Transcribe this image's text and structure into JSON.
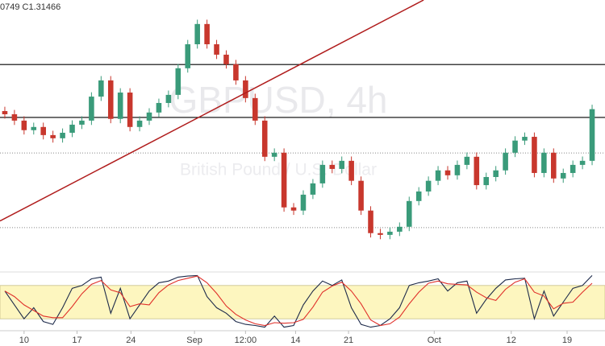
{
  "header": "0749  C1.31466",
  "chart_data": [
    {
      "type": "candlestick",
      "watermark": "GBPUSD, 4h",
      "watermark_subtitle": "British Pound / U.S. Dollar",
      "up_color": "#3a9b7a",
      "down_color": "#c8372d",
      "open": [
        1.314,
        1.3129,
        1.3107,
        1.3074,
        1.3085,
        1.3057,
        1.3046,
        1.3065,
        1.3093,
        1.3107,
        1.319,
        1.3246,
        1.3113,
        1.3204,
        1.3085,
        1.3107,
        1.3135,
        1.3168,
        1.3196,
        1.3288,
        1.3371,
        1.3441,
        1.3371,
        1.3335,
        1.3302,
        1.3246,
        1.3185,
        1.3107,
        1.2982,
        1.2996,
        1.2807,
        1.2796,
        1.2851,
        1.289,
        1.2954,
        1.294,
        1.2968,
        1.2899,
        1.2796,
        1.2718,
        1.2712,
        1.2723,
        1.274,
        1.2829,
        1.2862,
        1.2899,
        1.2935,
        1.2918,
        1.2954,
        1.2982,
        1.2884,
        1.2912,
        1.2935,
        1.2996,
        1.3038,
        1.3051,
        1.2926,
        1.2996,
        1.2907,
        1.2926,
        1.2954,
        1.2968
      ],
      "high": [
        1.3155,
        1.3144,
        1.3122,
        1.31,
        1.31,
        1.3072,
        1.308,
        1.3108,
        1.3122,
        1.3205,
        1.3261,
        1.3261,
        1.3219,
        1.3219,
        1.3122,
        1.315,
        1.3183,
        1.3211,
        1.3303,
        1.3386,
        1.3456,
        1.3456,
        1.3386,
        1.335,
        1.3317,
        1.3261,
        1.32,
        1.3122,
        1.3011,
        1.3011,
        1.2822,
        1.2866,
        1.2905,
        1.2969,
        1.2969,
        1.2983,
        1.2983,
        1.2914,
        1.2811,
        1.2733,
        1.2738,
        1.2755,
        1.2844,
        1.2877,
        1.2914,
        1.295,
        1.295,
        1.2969,
        1.2997,
        1.2997,
        1.2927,
        1.295,
        1.3011,
        1.3053,
        1.3066,
        1.3066,
        1.3011,
        1.3011,
        1.2941,
        1.2969,
        1.2983,
        1.3162
      ],
      "low": [
        1.3114,
        1.3092,
        1.3059,
        1.3059,
        1.3042,
        1.3031,
        1.3031,
        1.305,
        1.3078,
        1.3092,
        1.3175,
        1.3098,
        1.3098,
        1.307,
        1.307,
        1.3092,
        1.312,
        1.3153,
        1.3181,
        1.3273,
        1.3356,
        1.3356,
        1.332,
        1.3287,
        1.3231,
        1.317,
        1.3092,
        1.2967,
        1.2967,
        1.2792,
        1.2781,
        1.2781,
        1.2836,
        1.2875,
        1.2925,
        1.2925,
        1.2884,
        1.2781,
        1.2703,
        1.2697,
        1.2697,
        1.2708,
        1.2725,
        1.2814,
        1.2847,
        1.2884,
        1.2903,
        1.2903,
        1.2939,
        1.2869,
        1.2869,
        1.2897,
        1.292,
        1.2981,
        1.3023,
        1.2911,
        1.2911,
        1.2892,
        1.2892,
        1.2911,
        1.2939,
        1.2953
      ],
      "close": [
        1.3129,
        1.3107,
        1.3074,
        1.3085,
        1.3057,
        1.3046,
        1.3065,
        1.3093,
        1.3107,
        1.319,
        1.3246,
        1.3113,
        1.3204,
        1.3085,
        1.3107,
        1.3135,
        1.3168,
        1.3196,
        1.3288,
        1.3371,
        1.3441,
        1.3371,
        1.3335,
        1.3302,
        1.3246,
        1.3185,
        1.3107,
        1.2982,
        1.2996,
        1.2807,
        1.2796,
        1.2851,
        1.289,
        1.2954,
        1.294,
        1.2968,
        1.2899,
        1.2796,
        1.2718,
        1.2712,
        1.2723,
        1.274,
        1.2829,
        1.2862,
        1.2899,
        1.2935,
        1.2918,
        1.2954,
        1.2982,
        1.2884,
        1.2912,
        1.2935,
        1.2996,
        1.3038,
        1.3051,
        1.2926,
        1.2996,
        1.2907,
        1.2926,
        1.2954,
        1.2968,
        1.31466
      ],
      "xlim": [
        -0.5,
        61.5
      ],
      "ylim": [
        1.2606,
        1.3524
      ],
      "hlines": [
        {
          "value": 1.3301,
          "color": "#000000",
          "style": "solid"
        },
        {
          "value": 1.3118,
          "color": "#000000",
          "style": "solid"
        },
        {
          "value": 1.2995,
          "color": "#888888",
          "style": "dotted"
        },
        {
          "value": 1.2737,
          "color": "#888888",
          "style": "dotted"
        }
      ],
      "trendline": {
        "color": "#b01c1c",
        "x": [
          -0.5,
          43.5
        ],
        "y": [
          1.276,
          1.3524
        ]
      }
    },
    {
      "type": "line",
      "band": [
        20,
        80
      ],
      "band_color": "#fdf6bf",
      "xlim": [
        -0.5,
        61.5
      ],
      "ylim": [
        0,
        100
      ],
      "xticks": [
        {
          "value": 2,
          "label": "10"
        },
        {
          "value": 7.5,
          "label": "17"
        },
        {
          "value": 13.1,
          "label": "24"
        },
        {
          "value": 19.7,
          "label": "Sep"
        },
        {
          "value": 25,
          "label": "12:00"
        },
        {
          "value": 30.2,
          "label": "14"
        },
        {
          "value": 35.7,
          "label": "21"
        },
        {
          "value": 44.6,
          "label": "Oct"
        },
        {
          "value": 52.6,
          "label": "12"
        },
        {
          "value": 58.4,
          "label": "19"
        }
      ],
      "series": [
        {
          "color": "#1d2a4a",
          "values": [
            70,
            45,
            20,
            40,
            15,
            10,
            40,
            75,
            80,
            92,
            95,
            30,
            75,
            20,
            45,
            70,
            85,
            88,
            95,
            97,
            98,
            60,
            40,
            30,
            15,
            10,
            8,
            5,
            25,
            5,
            8,
            45,
            70,
            88,
            80,
            90,
            40,
            10,
            5,
            8,
            20,
            40,
            80,
            85,
            88,
            92,
            70,
            85,
            88,
            30,
            55,
            75,
            90,
            92,
            93,
            20,
            70,
            25,
            50,
            75,
            80,
            98
          ]
        },
        {
          "color": "#e0302a",
          "values": [
            70,
            60,
            45,
            35,
            25,
            22,
            22,
            42,
            65,
            82,
            89,
            72,
            67,
            42,
            47,
            45,
            67,
            81,
            89,
            93,
            97,
            85,
            66,
            43,
            28,
            18,
            11,
            8,
            13,
            12,
            13,
            19,
            41,
            68,
            79,
            86,
            70,
            47,
            18,
            8,
            11,
            23,
            47,
            68,
            84,
            88,
            83,
            82,
            81,
            68,
            58,
            53,
            73,
            86,
            92,
            68,
            61,
            38,
            48,
            50,
            68,
            84
          ]
        }
      ]
    }
  ]
}
